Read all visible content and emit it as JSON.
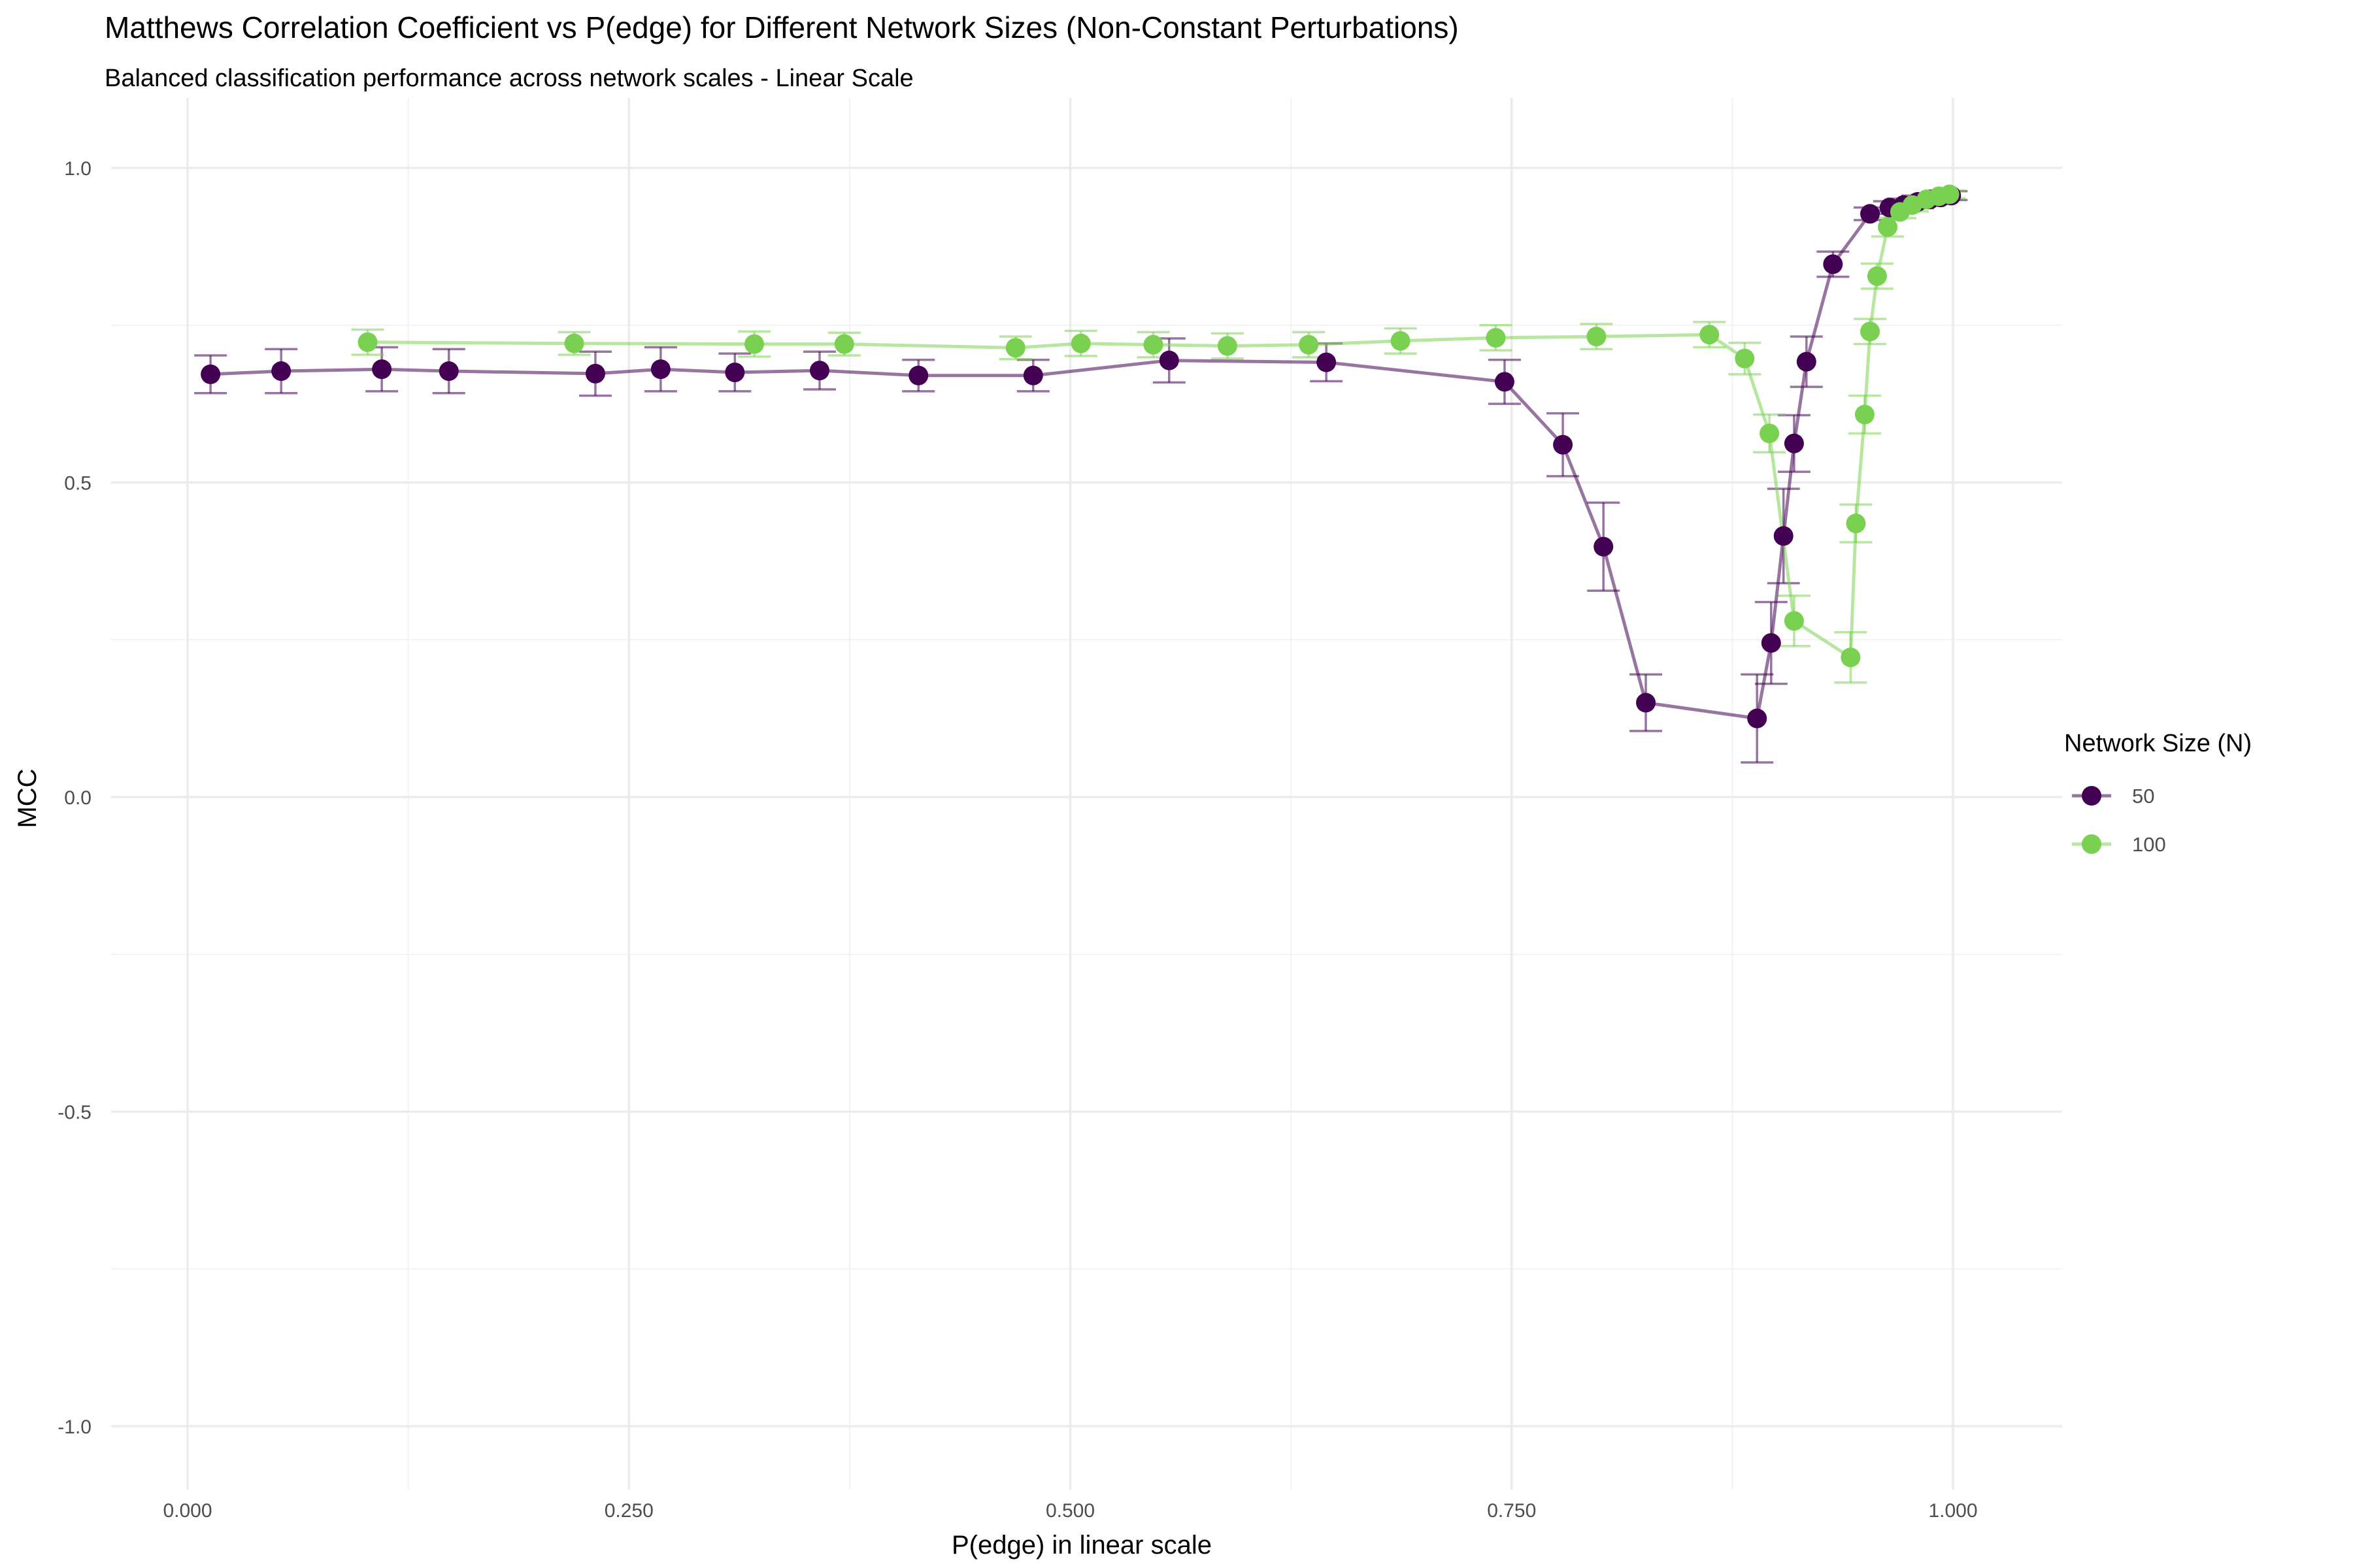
{
  "chart_data": {
    "type": "line",
    "title": "Matthews Correlation Coefficient vs P(edge) for Different Network Sizes (Non-Constant Perturbations)",
    "subtitle": "Balanced classification performance across network scales - Linear Scale",
    "xlabel": "P(edge) in linear scale",
    "ylabel": "MCC",
    "xlim": [
      -0.045,
      1.06
    ],
    "ylim": [
      -1.1,
      1.1
    ],
    "x_ticks": [
      0.0,
      0.25,
      0.5,
      0.75,
      1.0
    ],
    "x_tick_labels": [
      "0.000",
      "0.250",
      "0.500",
      "0.750",
      "1.000"
    ],
    "y_ticks": [
      1.0,
      0.5,
      0.0,
      -0.5,
      -1.0
    ],
    "y_tick_labels": [
      "1.0",
      "0.5",
      "0.0",
      "-0.5",
      "-1.0"
    ],
    "grid": true,
    "legend_title": "Network Size (N)",
    "legend_position": "right",
    "series": [
      {
        "name": "50",
        "color": "#440154",
        "points": [
          {
            "x": 0.013,
            "y": 0.672,
            "err": 0.03
          },
          {
            "x": 0.053,
            "y": 0.677,
            "err": 0.035
          },
          {
            "x": 0.11,
            "y": 0.68,
            "err": 0.035
          },
          {
            "x": 0.148,
            "y": 0.677,
            "err": 0.035
          },
          {
            "x": 0.231,
            "y": 0.673,
            "err": 0.035
          },
          {
            "x": 0.268,
            "y": 0.68,
            "err": 0.035
          },
          {
            "x": 0.31,
            "y": 0.675,
            "err": 0.03
          },
          {
            "x": 0.358,
            "y": 0.678,
            "err": 0.03
          },
          {
            "x": 0.414,
            "y": 0.67,
            "err": 0.025
          },
          {
            "x": 0.479,
            "y": 0.67,
            "err": 0.025
          },
          {
            "x": 0.556,
            "y": 0.694,
            "err": 0.035
          },
          {
            "x": 0.645,
            "y": 0.691,
            "err": 0.03
          },
          {
            "x": 0.746,
            "y": 0.66,
            "err": 0.035
          },
          {
            "x": 0.779,
            "y": 0.56,
            "err": 0.05
          },
          {
            "x": 0.802,
            "y": 0.398,
            "err": 0.07
          },
          {
            "x": 0.826,
            "y": 0.15,
            "err": 0.045
          },
          {
            "x": 0.889,
            "y": 0.125,
            "err": 0.07
          },
          {
            "x": 0.897,
            "y": 0.245,
            "err": 0.065
          },
          {
            "x": 0.904,
            "y": 0.415,
            "err": 0.075
          },
          {
            "x": 0.91,
            "y": 0.562,
            "err": 0.045
          },
          {
            "x": 0.917,
            "y": 0.692,
            "err": 0.04
          },
          {
            "x": 0.932,
            "y": 0.847,
            "err": 0.02
          },
          {
            "x": 0.953,
            "y": 0.927,
            "err": 0.01
          },
          {
            "x": 0.964,
            "y": 0.937,
            "err": 0.01
          },
          {
            "x": 0.972,
            "y": 0.941,
            "err": 0.01
          },
          {
            "x": 0.98,
            "y": 0.946,
            "err": 0.01
          },
          {
            "x": 0.987,
            "y": 0.95,
            "err": 0.008
          },
          {
            "x": 0.993,
            "y": 0.953,
            "err": 0.008
          },
          {
            "x": 0.999,
            "y": 0.956,
            "err": 0.007
          }
        ]
      },
      {
        "name": "100",
        "color": "#7ad151",
        "points": [
          {
            "x": 0.102,
            "y": 0.723,
            "err": 0.02
          },
          {
            "x": 0.219,
            "y": 0.721,
            "err": 0.018
          },
          {
            "x": 0.321,
            "y": 0.72,
            "err": 0.02
          },
          {
            "x": 0.372,
            "y": 0.72,
            "err": 0.018
          },
          {
            "x": 0.469,
            "y": 0.714,
            "err": 0.018
          },
          {
            "x": 0.506,
            "y": 0.721,
            "err": 0.02
          },
          {
            "x": 0.547,
            "y": 0.719,
            "err": 0.02
          },
          {
            "x": 0.589,
            "y": 0.717,
            "err": 0.02
          },
          {
            "x": 0.635,
            "y": 0.719,
            "err": 0.02
          },
          {
            "x": 0.687,
            "y": 0.725,
            "err": 0.02
          },
          {
            "x": 0.741,
            "y": 0.73,
            "err": 0.02
          },
          {
            "x": 0.798,
            "y": 0.732,
            "err": 0.02
          },
          {
            "x": 0.862,
            "y": 0.735,
            "err": 0.02
          },
          {
            "x": 0.882,
            "y": 0.697,
            "err": 0.025
          },
          {
            "x": 0.896,
            "y": 0.578,
            "err": 0.03
          },
          {
            "x": 0.91,
            "y": 0.28,
            "err": 0.04
          },
          {
            "x": 0.942,
            "y": 0.222,
            "err": 0.04
          },
          {
            "x": 0.945,
            "y": 0.435,
            "err": 0.03
          },
          {
            "x": 0.95,
            "y": 0.608,
            "err": 0.03
          },
          {
            "x": 0.953,
            "y": 0.74,
            "err": 0.02
          },
          {
            "x": 0.957,
            "y": 0.828,
            "err": 0.02
          },
          {
            "x": 0.963,
            "y": 0.906,
            "err": 0.015
          },
          {
            "x": 0.97,
            "y": 0.93,
            "err": 0.01
          },
          {
            "x": 0.977,
            "y": 0.941,
            "err": 0.01
          },
          {
            "x": 0.985,
            "y": 0.95,
            "err": 0.008
          },
          {
            "x": 0.992,
            "y": 0.955,
            "err": 0.007
          },
          {
            "x": 0.998,
            "y": 0.958,
            "err": 0.006
          }
        ]
      }
    ]
  }
}
